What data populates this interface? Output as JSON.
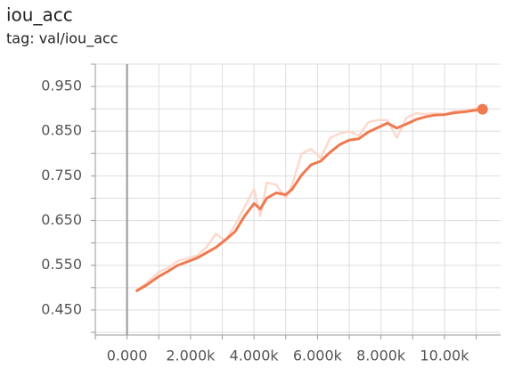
{
  "chart_data": {
    "type": "line",
    "title": "iou_acc",
    "subtitle": "tag: val/iou_acc",
    "x": [
      280,
      600,
      1000,
      1300,
      1600,
      1900,
      2200,
      2500,
      2800,
      3100,
      3400,
      3700,
      4000,
      4200,
      4400,
      4700,
      5000,
      5200,
      5500,
      5800,
      6100,
      6400,
      6700,
      7000,
      7300,
      7600,
      7900,
      8200,
      8500,
      8800,
      9100,
      9400,
      9700,
      10000,
      10300,
      10600,
      10900,
      11200
    ],
    "series": [
      {
        "color": "#fcd9cd",
        "values": [
          0.492,
          0.51,
          0.535,
          0.545,
          0.56,
          0.565,
          0.572,
          0.59,
          0.62,
          0.605,
          0.64,
          0.68,
          0.72,
          0.66,
          0.735,
          0.73,
          0.7,
          0.73,
          0.8,
          0.81,
          0.79,
          0.835,
          0.845,
          0.85,
          0.84,
          0.87,
          0.875,
          0.875,
          0.835,
          0.88,
          0.89,
          0.888,
          0.89,
          0.888,
          0.895,
          0.895,
          0.9,
          0.902
        ]
      },
      {
        "color": "#ee7a50",
        "values": [
          0.492,
          0.505,
          0.525,
          0.537,
          0.55,
          0.558,
          0.566,
          0.578,
          0.59,
          0.607,
          0.625,
          0.66,
          0.688,
          0.676,
          0.7,
          0.712,
          0.708,
          0.72,
          0.752,
          0.775,
          0.783,
          0.803,
          0.82,
          0.83,
          0.833,
          0.848,
          0.858,
          0.868,
          0.857,
          0.866,
          0.876,
          0.882,
          0.886,
          0.887,
          0.891,
          0.893,
          0.896,
          0.899
        ]
      }
    ],
    "xlim": [
      -1000,
      11770
    ],
    "ylim": [
      0.394,
      1.0
    ],
    "xticks": [
      {
        "value": 0,
        "label": "0.000"
      },
      {
        "value": 2000,
        "label": "2.000k"
      },
      {
        "value": 4000,
        "label": "4.000k"
      },
      {
        "value": 6000,
        "label": "6.000k"
      },
      {
        "value": 8000,
        "label": "8.000k"
      },
      {
        "value": 10000,
        "label": "10.00k"
      }
    ],
    "xticks_minor": [
      -1000,
      1000,
      3000,
      5000,
      7000,
      9000,
      11000
    ],
    "yticks": [
      {
        "value": 0.45,
        "label": "0.450"
      },
      {
        "value": 0.55,
        "label": "0.550"
      },
      {
        "value": 0.65,
        "label": "0.650"
      },
      {
        "value": 0.75,
        "label": "0.750"
      },
      {
        "value": 0.85,
        "label": "0.850"
      },
      {
        "value": 0.95,
        "label": "0.950"
      }
    ],
    "yticks_minor": [
      0.4,
      0.5,
      0.6,
      0.7,
      0.8,
      0.9,
      1.0
    ],
    "grid": true
  }
}
